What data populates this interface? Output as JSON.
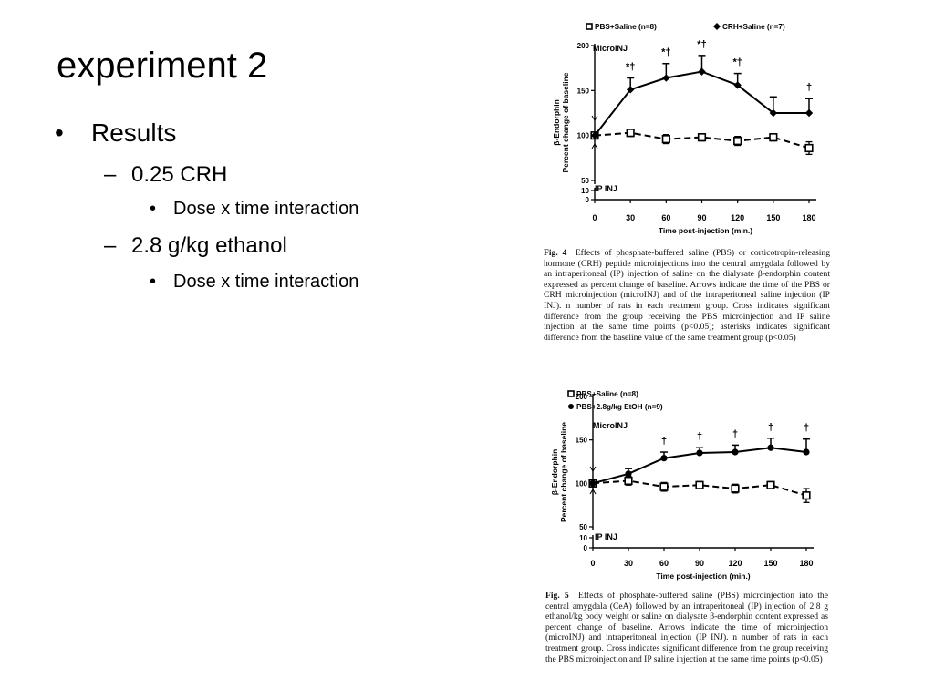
{
  "slide": {
    "title": "experiment 2",
    "bullets": [
      {
        "text": "Results",
        "level": 1,
        "marker": "•"
      },
      {
        "text": "0.25 CRH",
        "level": 2,
        "marker": "–"
      },
      {
        "text": "Dose x time interaction",
        "level": 3,
        "marker": "•"
      },
      {
        "text": "2.8 g/kg ethanol",
        "level": 2,
        "marker": "–"
      },
      {
        "text": "Dose x time interaction",
        "level": 3,
        "marker": "•"
      }
    ]
  },
  "figures": [
    {
      "label": "Fig. 4",
      "caption": "Effects of phosphate-buffered saline (PBS) or corticotropin-releasing hormone (CRH) peptide microinjections into the central amygdala followed by an intraperitoneal (IP) injection of saline on the dialysate β-endorphin content expressed as percent change of baseline. Arrows indicate the time of the PBS or CRH microinjection (microINJ) and of the intraperitoneal saline injection (IP INJ). n number of rats in each treatment group. Cross indicates significant difference from the group receiving the PBS microinjection and IP saline injection at the same time points (p<0.05); asterisks indicates significant difference from the baseline value of the same treatment group (p<0.05)"
    },
    {
      "label": "Fig. 5",
      "caption": "Effects of phosphate-buffered saline (PBS) microinjection into the central amygdala (CeA) followed by an intraperitoneal (IP) injection of 2.8 g ethanol/kg body weight or saline on dialysate β-endorphin content expressed as percent change of baseline. Arrows indicate the time of microinjection (microINJ) and intraperitoneal injection (IP INJ). n number of rats in each treatment group. Cross indicates significant difference from the group receiving the PBS microinjection and IP saline injection at the same time points (p<0.05)"
    }
  ],
  "chart_data": [
    {
      "type": "line",
      "xlabel": "Time post-injection (min.)",
      "ylabel": "β-Endorphin\nPercent change of baseline",
      "x": [
        0,
        30,
        60,
        90,
        120,
        150,
        180
      ],
      "x_ticks": [
        "0",
        "30",
        "60",
        "90",
        "120",
        "150",
        "180"
      ],
      "y_ticks": [
        "0",
        "10",
        "50",
        "100",
        "150",
        "200"
      ],
      "ylim": [
        0,
        200
      ],
      "axis_break": "between 10 and 50",
      "annotations": {
        "top_arrow": "MicroINJ",
        "bottom_arrow": "IP INJ"
      },
      "series": [
        {
          "name": "PBS+Saline (n=8)",
          "marker": "open-square",
          "line": "dashed",
          "color": "#000000",
          "values": [
            100,
            103,
            96,
            98,
            94,
            98,
            86
          ],
          "errors": [
            0,
            4,
            5,
            4,
            5,
            4,
            7
          ]
        },
        {
          "name": "CRH+Saline (n=7)",
          "marker": "filled-diamond",
          "line": "solid",
          "color": "#000000",
          "values": [
            100,
            151,
            164,
            171,
            156,
            125,
            125
          ],
          "errors": [
            0,
            13,
            16,
            18,
            13,
            18,
            16
          ],
          "significance": [
            "",
            "*†",
            "*†",
            "*†",
            "*†",
            "",
            "†"
          ]
        }
      ]
    },
    {
      "type": "line",
      "xlabel": "Time post-injection (min.)",
      "ylabel": "β-Endorphin\nPercent change of baseline",
      "x": [
        0,
        30,
        60,
        90,
        120,
        150,
        180
      ],
      "x_ticks": [
        "0",
        "30",
        "60",
        "90",
        "120",
        "150",
        "180"
      ],
      "y_ticks": [
        "0",
        "10",
        "50",
        "100",
        "150",
        "200"
      ],
      "ylim": [
        0,
        200
      ],
      "axis_break": "between 10 and 50",
      "annotations": {
        "top_arrow": "MicroINJ",
        "bottom_arrow": "IP INJ"
      },
      "series": [
        {
          "name": "PBS+Saline (n=8)",
          "marker": "open-square",
          "line": "dashed",
          "color": "#000000",
          "values": [
            100,
            103,
            96,
            98,
            94,
            98,
            86
          ],
          "errors": [
            0,
            5,
            5,
            4,
            5,
            4,
            8
          ]
        },
        {
          "name": "PBS+2.8g/kg EtOH (n=9)",
          "marker": "filled-circle",
          "line": "solid",
          "color": "#000000",
          "values": [
            100,
            111,
            129,
            135,
            136,
            141,
            136
          ],
          "errors": [
            0,
            6,
            7,
            6,
            8,
            11,
            15
          ],
          "significance": [
            "",
            "",
            "†",
            "†",
            "†",
            "†",
            "†"
          ]
        }
      ]
    }
  ]
}
